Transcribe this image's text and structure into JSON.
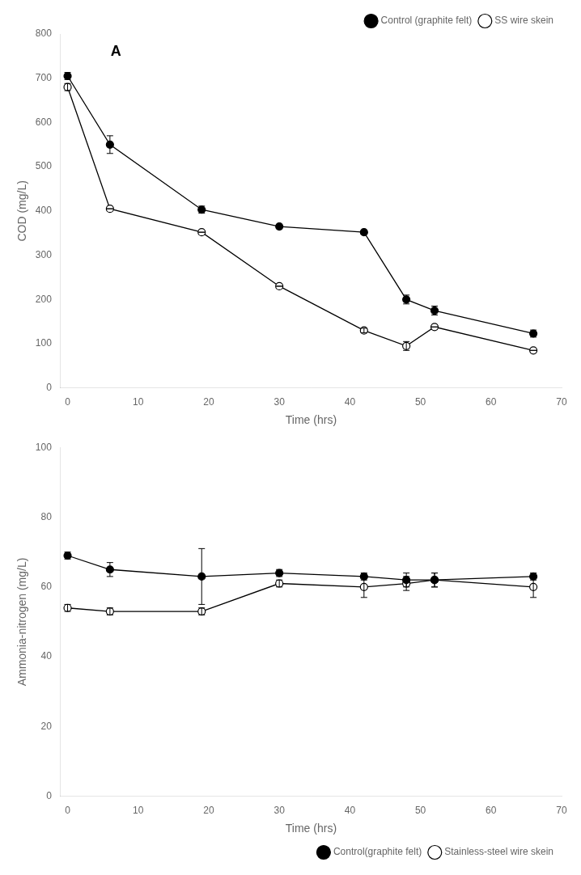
{
  "chart_data": [
    {
      "type": "line",
      "annotations": [
        "A"
      ],
      "x": [
        0,
        6,
        19,
        30,
        42,
        48,
        52,
        66
      ],
      "xlabel": "Time (hrs)",
      "ylabel": "COD (mg/L)",
      "xlim": [
        -1,
        70
      ],
      "ylim": [
        0,
        800
      ],
      "xticks": [
        0,
        10,
        20,
        30,
        40,
        50,
        60,
        70
      ],
      "yticks": [
        0,
        100,
        200,
        300,
        400,
        500,
        600,
        700,
        800
      ],
      "grid": false,
      "legend": "upper right",
      "series": [
        {
          "name": "Control (graphite felt)",
          "color": "#000000",
          "marker": "filled_circle",
          "values": [
            705,
            550,
            403,
            365,
            352,
            200,
            175,
            123
          ],
          "yerr": [
            8,
            20,
            8,
            0,
            0,
            10,
            10,
            8
          ]
        },
        {
          "name": "SS wire skein",
          "color": "#000000",
          "marker": "open_circle",
          "values": [
            680,
            405,
            352,
            230,
            130,
            95,
            138,
            85
          ],
          "yerr": [
            8,
            0,
            0,
            0,
            5,
            10,
            0,
            0
          ]
        }
      ]
    },
    {
      "type": "line",
      "x": [
        0,
        6,
        19,
        30,
        42,
        48,
        52,
        66
      ],
      "xlabel": "Time (hrs)",
      "ylabel": "Ammonia-nitrogen (mg/L)",
      "xlim": [
        -1,
        70
      ],
      "ylim": [
        0,
        100
      ],
      "xticks": [
        0,
        10,
        20,
        30,
        40,
        50,
        60,
        70
      ],
      "yticks": [
        0,
        20,
        40,
        60,
        80,
        100
      ],
      "grid": false,
      "legend": "lower right",
      "series": [
        {
          "name": "Control(graphite felt)",
          "color": "#000000",
          "marker": "filled_circle",
          "values": [
            69,
            65,
            63,
            64,
            63,
            62,
            62,
            63
          ],
          "yerr": [
            1,
            2,
            8,
            1,
            1,
            2,
            2,
            1
          ]
        },
        {
          "name": "Stainless-steel wire skein",
          "color": "#000000",
          "marker": "open_circle",
          "values": [
            54,
            53,
            53,
            61,
            60,
            61,
            62,
            60
          ],
          "yerr": [
            1,
            1,
            1,
            1,
            3,
            2,
            2,
            3
          ]
        }
      ]
    }
  ]
}
